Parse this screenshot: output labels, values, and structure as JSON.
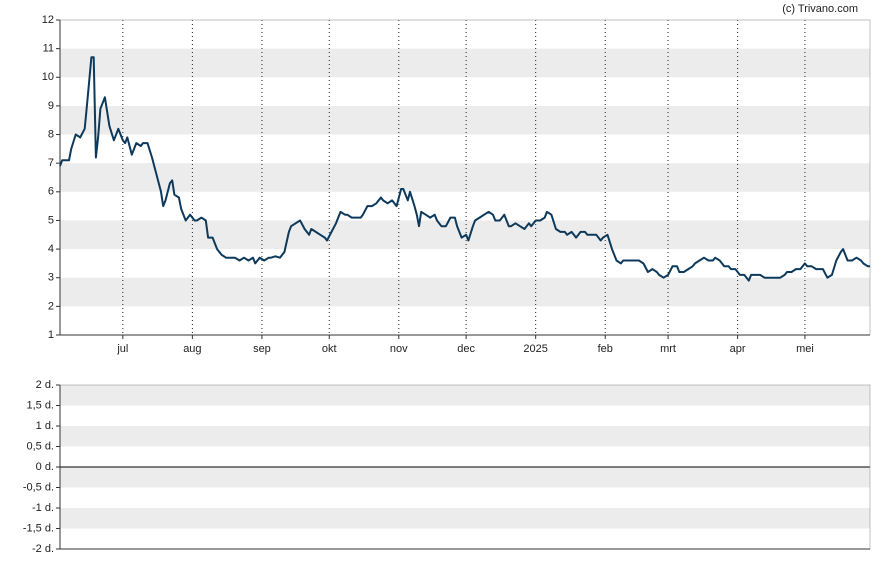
{
  "credit": "(c) Trivano.com",
  "chart_data": [
    {
      "type": "line",
      "x": [
        0,
        1,
        4,
        5,
        7,
        9,
        11,
        12,
        14,
        15,
        16,
        17,
        18,
        20,
        22,
        24,
        26,
        28,
        29,
        30,
        32,
        34,
        36,
        37,
        39,
        41,
        43,
        45,
        46,
        47,
        49,
        50,
        51,
        53,
        54,
        56,
        58,
        60,
        61,
        63,
        65,
        66,
        68,
        70,
        72,
        74,
        76,
        78,
        80,
        82,
        84,
        86,
        87,
        89,
        91,
        93,
        94,
        96,
        98,
        100,
        102,
        103,
        105,
        107,
        109,
        111,
        112,
        114,
        116,
        118,
        119,
        121,
        123,
        125,
        127,
        128,
        130,
        132,
        134,
        135,
        137,
        139,
        141,
        143,
        144,
        146,
        148,
        150,
        152,
        153,
        155,
        156,
        158,
        159,
        160,
        161,
        163,
        165,
        167,
        168,
        170,
        172,
        174,
        176,
        177,
        179,
        181,
        182,
        184,
        185,
        187,
        189,
        191,
        193,
        194,
        196,
        198,
        200,
        201,
        203,
        205,
        207,
        209,
        210,
        212,
        214,
        216,
        217,
        219,
        221,
        223,
        225,
        226,
        228,
        230,
        232,
        234,
        235,
        237,
        239,
        241,
        242,
        244,
        246,
        248,
        250,
        251,
        253,
        255,
        257,
        258,
        260,
        262,
        264,
        266,
        267,
        269,
        271,
        273,
        275,
        276,
        278,
        280,
        282,
        283,
        285,
        287,
        289,
        291,
        292,
        294,
        296,
        298,
        299,
        301,
        303,
        305,
        307,
        308,
        310,
        312,
        314,
        316,
        317,
        319,
        321,
        323,
        324,
        326,
        328,
        330,
        332,
        333,
        335,
        337,
        339,
        340,
        342,
        344,
        346,
        348,
        349,
        351,
        353,
        355,
        357,
        358,
        360,
        361
      ],
      "series": [
        {
          "color": "#0d3a5c",
          "values": [
            6.9,
            7.1,
            7.1,
            7.5,
            8.0,
            7.9,
            8.2,
            9.0,
            10.7,
            10.7,
            7.2,
            7.9,
            8.9,
            9.3,
            8.3,
            7.8,
            8.2,
            7.8,
            7.7,
            7.9,
            7.3,
            7.7,
            7.6,
            7.7,
            7.7,
            7.2,
            6.6,
            6.0,
            5.5,
            5.7,
            6.3,
            6.4,
            5.9,
            5.8,
            5.4,
            5.0,
            5.2,
            5.0,
            5.0,
            5.1,
            5.0,
            4.4,
            4.4,
            4.0,
            3.8,
            3.7,
            3.7,
            3.7,
            3.6,
            3.7,
            3.6,
            3.7,
            3.5,
            3.7,
            3.6,
            3.7,
            3.7,
            3.75,
            3.7,
            3.9,
            4.6,
            4.8,
            4.9,
            5.0,
            4.7,
            4.5,
            4.7,
            4.6,
            4.5,
            4.4,
            4.3,
            4.6,
            4.9,
            5.3,
            5.2,
            5.2,
            5.1,
            5.1,
            5.1,
            5.2,
            5.5,
            5.5,
            5.6,
            5.8,
            5.7,
            5.6,
            5.7,
            5.5,
            6.1,
            6.1,
            5.7,
            6.0,
            5.5,
            5.2,
            4.8,
            5.3,
            5.2,
            5.1,
            5.2,
            5.0,
            4.8,
            4.8,
            5.1,
            5.1,
            4.8,
            4.4,
            4.5,
            4.3,
            4.8,
            5.0,
            5.1,
            5.2,
            5.3,
            5.2,
            5.0,
            5.0,
            5.2,
            4.8,
            4.8,
            4.9,
            4.8,
            4.7,
            4.9,
            4.8,
            5.0,
            5.0,
            5.1,
            5.3,
            5.2,
            4.7,
            4.6,
            4.6,
            4.5,
            4.6,
            4.4,
            4.6,
            4.6,
            4.5,
            4.5,
            4.5,
            4.3,
            4.4,
            4.5,
            4.0,
            3.6,
            3.5,
            3.6,
            3.6,
            3.6,
            3.6,
            3.6,
            3.5,
            3.2,
            3.3,
            3.2,
            3.1,
            3.0,
            3.1,
            3.4,
            3.4,
            3.2,
            3.2,
            3.3,
            3.4,
            3.5,
            3.6,
            3.7,
            3.6,
            3.6,
            3.7,
            3.6,
            3.4,
            3.4,
            3.3,
            3.3,
            3.1,
            3.1,
            2.9,
            3.1,
            3.1,
            3.1,
            3.0,
            3.0,
            3.0,
            3.0,
            3.0,
            3.1,
            3.2,
            3.2,
            3.3,
            3.3,
            3.5,
            3.4,
            3.4,
            3.3,
            3.3,
            3.3,
            3.0,
            3.1,
            3.6,
            3.9,
            4.0,
            3.6,
            3.6,
            3.7,
            3.6,
            3.5,
            3.4,
            3.4
          ]
        }
      ],
      "xlim": [
        0,
        361
      ],
      "xticks": [
        {
          "value": 28,
          "label": "jul"
        },
        {
          "value": 59,
          "label": "aug"
        },
        {
          "value": 90,
          "label": "sep"
        },
        {
          "value": 120,
          "label": "okt"
        },
        {
          "value": 151,
          "label": "nov"
        },
        {
          "value": 181,
          "label": "dec"
        },
        {
          "value": 212,
          "label": "2025"
        },
        {
          "value": 243,
          "label": "feb"
        },
        {
          "value": 271,
          "label": "mrt"
        },
        {
          "value": 302,
          "label": "apr"
        },
        {
          "value": 332,
          "label": "mei"
        }
      ],
      "xgrid": true,
      "ylim": [
        1,
        12
      ],
      "yticks": [
        1,
        2,
        3,
        4,
        5,
        6,
        7,
        8,
        9,
        10,
        11,
        12
      ],
      "grid": true
    },
    {
      "type": "line",
      "series": [],
      "ylim": [
        -2,
        2
      ],
      "yticks": [
        {
          "value": -2,
          "label": "-2 d."
        },
        {
          "value": -1.5,
          "label": "-1,5 d."
        },
        {
          "value": -1,
          "label": "-1 d."
        },
        {
          "value": -0.5,
          "label": "-0,5 d."
        },
        {
          "value": 0,
          "label": "0 d."
        },
        {
          "value": 0.5,
          "label": "0,5 d."
        },
        {
          "value": 1,
          "label": "1 d."
        },
        {
          "value": 1.5,
          "label": "1,5 d."
        },
        {
          "value": 2,
          "label": "2 d."
        }
      ],
      "grid": true
    }
  ]
}
